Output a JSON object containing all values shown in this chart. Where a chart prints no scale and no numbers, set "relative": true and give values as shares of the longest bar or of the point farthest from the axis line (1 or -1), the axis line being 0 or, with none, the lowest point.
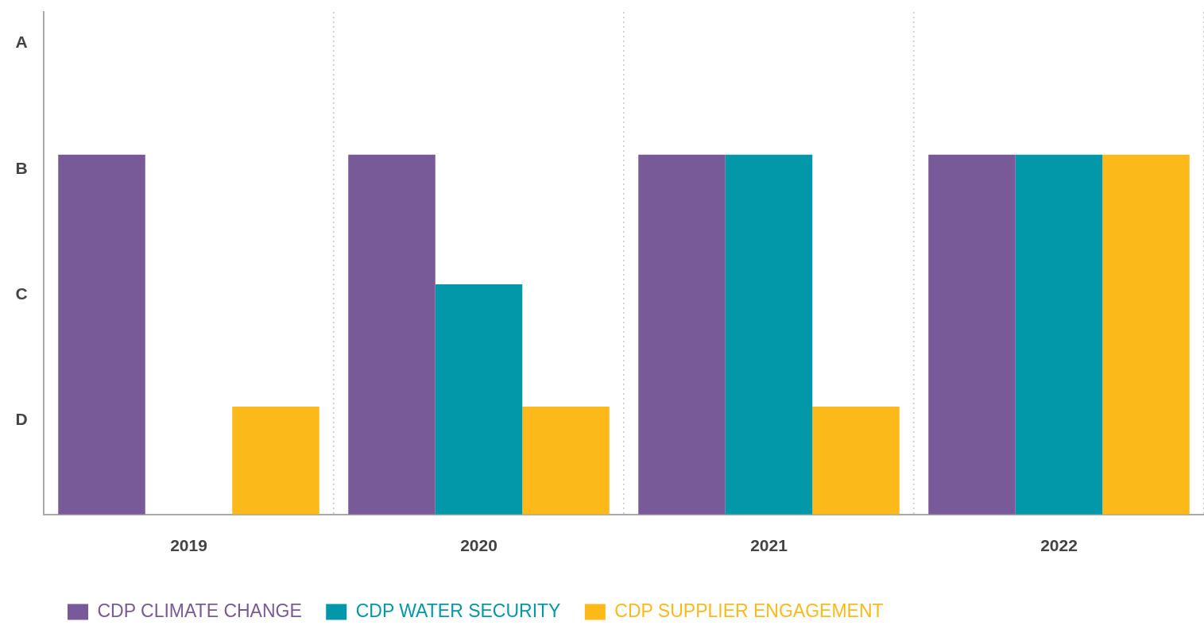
{
  "chart_data": {
    "type": "bar",
    "categories": [
      "2019",
      "2020",
      "2021",
      "2022"
    ],
    "series": [
      {
        "name": "CDP CLIMATE CHANGE",
        "color": "#785a98",
        "values": [
          1,
          1,
          1,
          1
        ]
      },
      {
        "name": "CDP WATER SECURITY",
        "color": "#0398a9",
        "values": [
          null,
          0.64,
          1,
          1
        ]
      },
      {
        "name": "CDP SUPPLIER ENGAGEMENT",
        "color": "#fbb91a",
        "values": [
          0.3,
          0.3,
          0.3,
          1
        ]
      }
    ],
    "relative": true,
    "annotations": [
      "A",
      "B",
      "C",
      "D"
    ],
    "grid": "x",
    "legend": "bottom left"
  }
}
